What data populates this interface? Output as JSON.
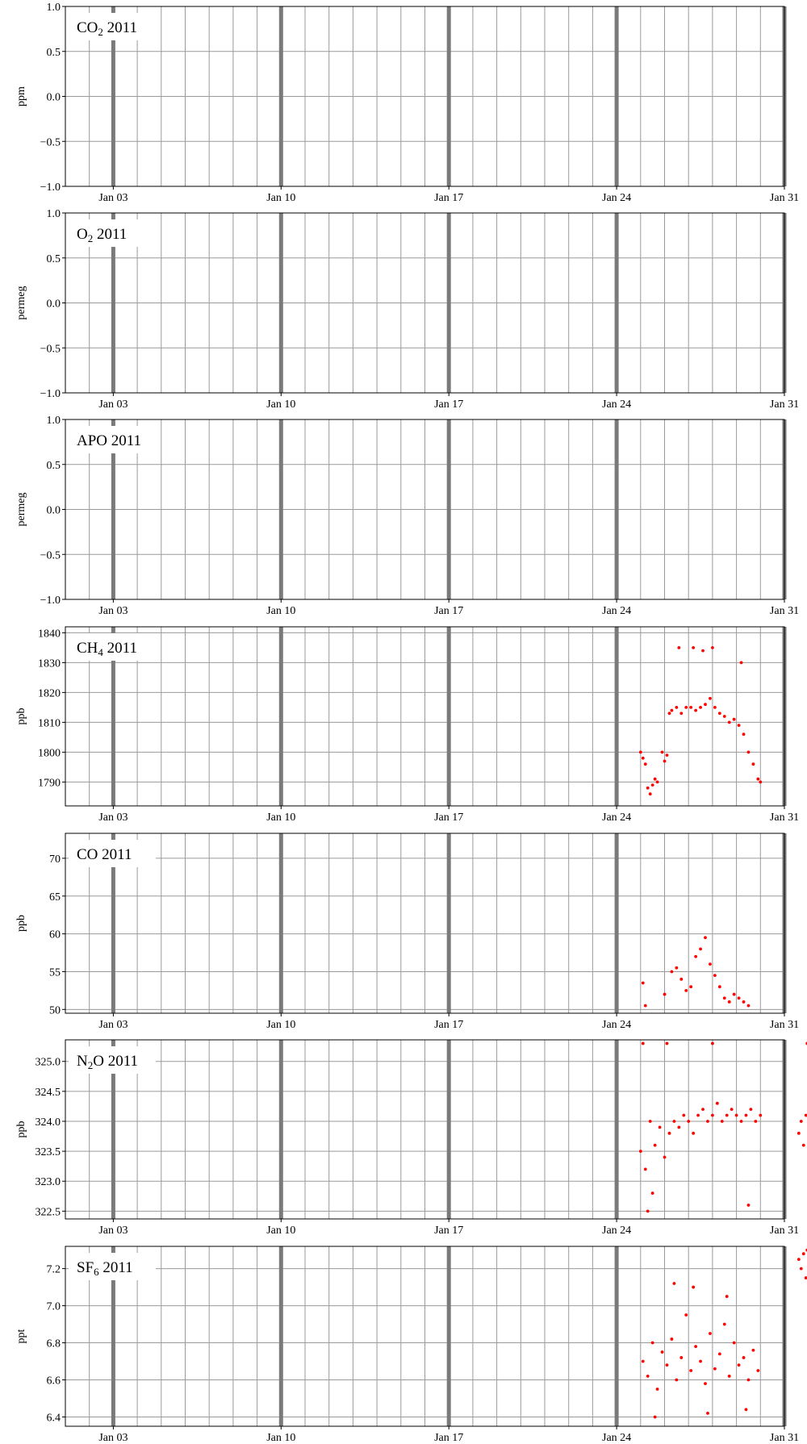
{
  "colors": {
    "grid": "#9a9a9a",
    "week_line": "#7a7a7a",
    "points": "#ff0000",
    "frame": "#000000"
  },
  "x_axis": {
    "range_days": [
      0,
      30
    ],
    "ticks": [
      {
        "day": 2,
        "label": "Jan 03"
      },
      {
        "day": 9,
        "label": "Jan 10"
      },
      {
        "day": 16,
        "label": "Jan 17"
      },
      {
        "day": 23,
        "label": "Jan 24"
      },
      {
        "day": 30,
        "label": "Jan 31"
      }
    ],
    "week_lines_days": [
      2,
      9,
      16,
      23,
      30
    ]
  },
  "chart_data": [
    {
      "type": "scatter",
      "title": {
        "main": "CO",
        "sub": "2",
        "rest": " 2011"
      },
      "ylabel": "ppm",
      "ylim": [
        -1.0,
        1.0
      ],
      "yticks": [
        {
          "v": -1.0,
          "label": "−1.0"
        },
        {
          "v": -0.5,
          "label": "−0.5"
        },
        {
          "v": 0.0,
          "label": "0.0"
        },
        {
          "v": 0.5,
          "label": "0.5"
        },
        {
          "v": 1.0,
          "label": "1.0"
        }
      ],
      "ygrid": [
        -1.0,
        -0.5,
        0.0,
        0.5,
        1.0
      ],
      "points": []
    },
    {
      "type": "scatter",
      "title": {
        "main": "O",
        "sub": "2",
        "rest": " 2011"
      },
      "ylabel": "permeg",
      "ylim": [
        -1.0,
        1.0
      ],
      "yticks": [
        {
          "v": -1.0,
          "label": "−1.0"
        },
        {
          "v": -0.5,
          "label": "−0.5"
        },
        {
          "v": 0.0,
          "label": "0.0"
        },
        {
          "v": 0.5,
          "label": "0.5"
        },
        {
          "v": 1.0,
          "label": "1.0"
        }
      ],
      "ygrid": [
        -1.0,
        -0.5,
        0.0,
        0.5,
        1.0
      ],
      "points": []
    },
    {
      "type": "scatter",
      "title": {
        "main": "APO",
        "sub": "",
        "rest": " 2011"
      },
      "ylabel": "permeg",
      "ylim": [
        -1.0,
        1.0
      ],
      "yticks": [
        {
          "v": -1.0,
          "label": "−1.0"
        },
        {
          "v": -0.5,
          "label": "−0.5"
        },
        {
          "v": 0.0,
          "label": "0.0"
        },
        {
          "v": 0.5,
          "label": "0.5"
        },
        {
          "v": 1.0,
          "label": "1.0"
        }
      ],
      "ygrid": [
        -1.0,
        -0.5,
        0.0,
        0.5,
        1.0
      ],
      "points": []
    },
    {
      "type": "scatter",
      "title": {
        "main": "CH",
        "sub": "4",
        "rest": " 2011"
      },
      "ylabel": "ppb",
      "ylim": [
        1782,
        1842
      ],
      "yticks": [
        {
          "v": 1790,
          "label": "1790"
        },
        {
          "v": 1800,
          "label": "1800"
        },
        {
          "v": 1810,
          "label": "1810"
        },
        {
          "v": 1820,
          "label": "1820"
        },
        {
          "v": 1830,
          "label": "1830"
        },
        {
          "v": 1840,
          "label": "1840"
        }
      ],
      "ygrid": [
        1790,
        1800,
        1810,
        1820,
        1830,
        1840
      ],
      "points": [
        [
          24.0,
          1800
        ],
        [
          24.1,
          1798
        ],
        [
          24.2,
          1796
        ],
        [
          24.3,
          1788
        ],
        [
          24.4,
          1786
        ],
        [
          24.5,
          1789
        ],
        [
          24.6,
          1791
        ],
        [
          24.7,
          1790
        ],
        [
          24.9,
          1800
        ],
        [
          25.0,
          1797
        ],
        [
          25.1,
          1799
        ],
        [
          25.2,
          1813
        ],
        [
          25.3,
          1814
        ],
        [
          25.5,
          1815
        ],
        [
          25.7,
          1813
        ],
        [
          25.9,
          1815
        ],
        [
          26.1,
          1815
        ],
        [
          26.3,
          1814
        ],
        [
          26.5,
          1815
        ],
        [
          26.7,
          1816
        ],
        [
          26.9,
          1818
        ],
        [
          27.1,
          1815
        ],
        [
          27.3,
          1813
        ],
        [
          27.5,
          1812
        ],
        [
          27.7,
          1810
        ],
        [
          27.9,
          1811
        ],
        [
          28.1,
          1809
        ],
        [
          28.3,
          1806
        ],
        [
          28.5,
          1800
        ],
        [
          28.7,
          1796
        ],
        [
          28.9,
          1791
        ],
        [
          29.0,
          1790
        ],
        [
          25.6,
          1835
        ],
        [
          26.2,
          1835
        ],
        [
          26.6,
          1834
        ],
        [
          27.0,
          1835
        ],
        [
          28.2,
          1830
        ]
      ]
    },
    {
      "type": "scatter",
      "title": {
        "main": "CO",
        "sub": "",
        "rest": " 2011"
      },
      "ylabel": "ppb",
      "ylim": [
        49.5,
        73.3
      ],
      "yticks": [
        {
          "v": 50,
          "label": "50"
        },
        {
          "v": 55,
          "label": "55"
        },
        {
          "v": 60,
          "label": "60"
        },
        {
          "v": 65,
          "label": "65"
        },
        {
          "v": 70,
          "label": "70"
        }
      ],
      "ygrid": [
        50,
        55,
        60,
        65,
        70
      ],
      "points": [
        [
          24.1,
          53.5
        ],
        [
          24.2,
          50.5
        ],
        [
          25.0,
          52.0
        ],
        [
          25.3,
          55.0
        ],
        [
          25.5,
          55.5
        ],
        [
          25.7,
          54.0
        ],
        [
          25.9,
          52.5
        ],
        [
          26.1,
          53.0
        ],
        [
          26.3,
          57.0
        ],
        [
          26.5,
          58.0
        ],
        [
          26.7,
          59.5
        ],
        [
          26.9,
          56.0
        ],
        [
          27.1,
          54.5
        ],
        [
          27.3,
          53.0
        ],
        [
          27.5,
          51.5
        ],
        [
          27.7,
          51.0
        ],
        [
          27.9,
          52.0
        ],
        [
          28.1,
          51.5
        ],
        [
          28.3,
          51.0
        ],
        [
          28.5,
          50.5
        ]
      ]
    },
    {
      "type": "scatter",
      "title": {
        "main": "N",
        "sub": "2",
        "rest": "O 2011"
      },
      "ylabel": "ppb",
      "ylim": [
        322.37,
        325.36
      ],
      "yticks": [
        {
          "v": 322.5,
          "label": "322.5"
        },
        {
          "v": 323.0,
          "label": "323.0"
        },
        {
          "v": 323.5,
          "label": "323.5"
        },
        {
          "v": 324.0,
          "label": "324.0"
        },
        {
          "v": 324.5,
          "label": "324.5"
        },
        {
          "v": 325.0,
          "label": "325.0"
        }
      ],
      "ygrid": [
        322.5,
        323.0,
        323.5,
        324.0,
        324.5,
        325.0
      ],
      "points": [
        [
          24.0,
          323.5
        ],
        [
          24.2,
          323.2
        ],
        [
          24.4,
          324.0
        ],
        [
          24.6,
          323.6
        ],
        [
          24.8,
          323.9
        ],
        [
          25.0,
          323.4
        ],
        [
          25.2,
          323.8
        ],
        [
          25.4,
          324.0
        ],
        [
          25.6,
          323.9
        ],
        [
          25.8,
          324.1
        ],
        [
          26.0,
          324.0
        ],
        [
          26.2,
          323.8
        ],
        [
          26.4,
          324.1
        ],
        [
          26.6,
          324.2
        ],
        [
          26.8,
          324.0
        ],
        [
          27.0,
          324.1
        ],
        [
          27.2,
          324.3
        ],
        [
          27.4,
          324.0
        ],
        [
          27.6,
          324.1
        ],
        [
          27.8,
          324.2
        ],
        [
          28.0,
          324.1
        ],
        [
          28.2,
          324.0
        ],
        [
          28.4,
          324.1
        ],
        [
          28.6,
          324.2
        ],
        [
          28.8,
          324.0
        ],
        [
          29.0,
          324.1
        ],
        [
          24.3,
          322.5
        ],
        [
          24.5,
          322.8
        ],
        [
          28.5,
          322.6
        ],
        [
          24.1,
          325.3
        ],
        [
          25.1,
          325.3
        ],
        [
          27.0,
          325.3
        ],
        [
          30.6,
          323.8
        ],
        [
          30.7,
          324.0
        ],
        [
          30.8,
          323.6
        ],
        [
          30.9,
          324.1
        ],
        [
          30.95,
          325.3
        ]
      ]
    },
    {
      "type": "scatter",
      "title": {
        "main": "SF",
        "sub": "6",
        "rest": " 2011"
      },
      "ylabel": "ppt",
      "ylim": [
        6.35,
        7.32
      ],
      "yticks": [
        {
          "v": 6.4,
          "label": "6.4"
        },
        {
          "v": 6.6,
          "label": "6.6"
        },
        {
          "v": 6.8,
          "label": "6.8"
        },
        {
          "v": 7.0,
          "label": "7.0"
        },
        {
          "v": 7.2,
          "label": "7.2"
        }
      ],
      "ygrid": [
        6.4,
        6.6,
        6.8,
        7.0,
        7.2
      ],
      "points": [
        [
          24.1,
          6.7
        ],
        [
          24.3,
          6.62
        ],
        [
          24.5,
          6.8
        ],
        [
          24.7,
          6.55
        ],
        [
          24.9,
          6.75
        ],
        [
          25.1,
          6.68
        ],
        [
          25.3,
          6.82
        ],
        [
          25.5,
          6.6
        ],
        [
          25.7,
          6.72
        ],
        [
          25.9,
          6.95
        ],
        [
          26.1,
          6.65
        ],
        [
          26.3,
          6.78
        ],
        [
          26.5,
          6.7
        ],
        [
          26.7,
          6.58
        ],
        [
          26.9,
          6.85
        ],
        [
          27.1,
          6.66
        ],
        [
          27.3,
          6.74
        ],
        [
          27.5,
          6.9
        ],
        [
          27.7,
          6.62
        ],
        [
          27.9,
          6.8
        ],
        [
          28.1,
          6.68
        ],
        [
          28.3,
          6.72
        ],
        [
          28.5,
          6.6
        ],
        [
          28.7,
          6.76
        ],
        [
          28.9,
          6.65
        ],
        [
          25.4,
          7.12
        ],
        [
          26.2,
          7.1
        ],
        [
          27.6,
          7.05
        ],
        [
          24.6,
          6.4
        ],
        [
          26.8,
          6.42
        ],
        [
          28.4,
          6.44
        ],
        [
          30.6,
          7.25
        ],
        [
          30.7,
          7.2
        ],
        [
          30.8,
          7.28
        ],
        [
          30.9,
          7.15
        ],
        [
          30.95,
          7.3
        ]
      ]
    }
  ]
}
